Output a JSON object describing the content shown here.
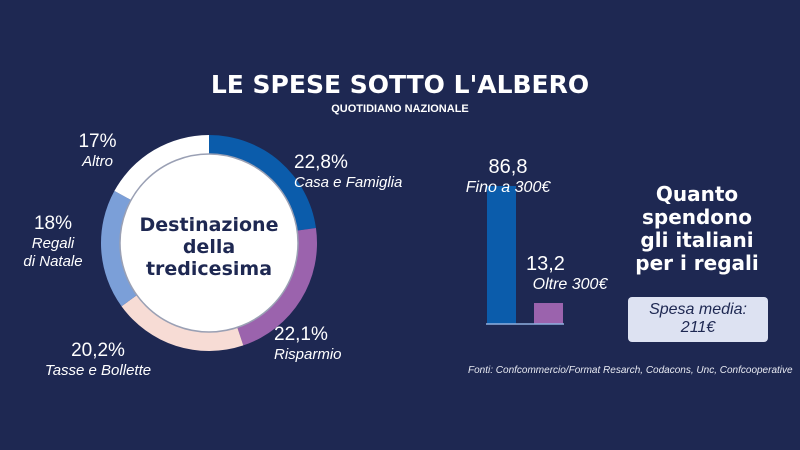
{
  "title": "LE SPESE SOTTO L'ALBERO",
  "subtitle": "QUOTIDIANO NAZIONALE",
  "chart_data": [
    {
      "type": "pie",
      "variant": "donut",
      "title": "Destinazione della tredicesima",
      "slices": [
        {
          "label": "Casa e Famiglia",
          "value": 22.8,
          "display": "22,8%",
          "color": "#0b5cab"
        },
        {
          "label": "Risparmio",
          "value": 22.1,
          "display": "22,1%",
          "color": "#9b63ad"
        },
        {
          "label": "Tasse e Bollette",
          "value": 20.2,
          "display": "20,2%",
          "color": "#f7dcd5"
        },
        {
          "label": "Regali di Natale",
          "value": 18,
          "display": "18%",
          "color": "#7b9fd8"
        },
        {
          "label": "Altro",
          "value": 17,
          "display": "17%",
          "color": "#ffffff"
        }
      ]
    },
    {
      "type": "bar",
      "title": "Quanto spendono gli italiani per i regali",
      "categories": [
        "Fino a 300€",
        "Oltre 300€"
      ],
      "values": [
        86.8,
        13.2
      ],
      "display": [
        "86,8",
        "13,2"
      ],
      "colors": [
        "#0b5cab",
        "#9b63ad"
      ]
    }
  ],
  "center_lines": [
    "Destinazione",
    "della",
    "tredicesima"
  ],
  "side_title_lines": [
    "Quanto",
    "spendono",
    "gli italiani",
    "per i regali"
  ],
  "average": {
    "label": "Spesa media:",
    "value": "211€"
  },
  "sources": "Fonti: Confcommercio/Format Resarch, Codacons, Unc, Confcooperative",
  "colors": {
    "background": "#1e2852",
    "baseline": "#8fb0e0"
  }
}
